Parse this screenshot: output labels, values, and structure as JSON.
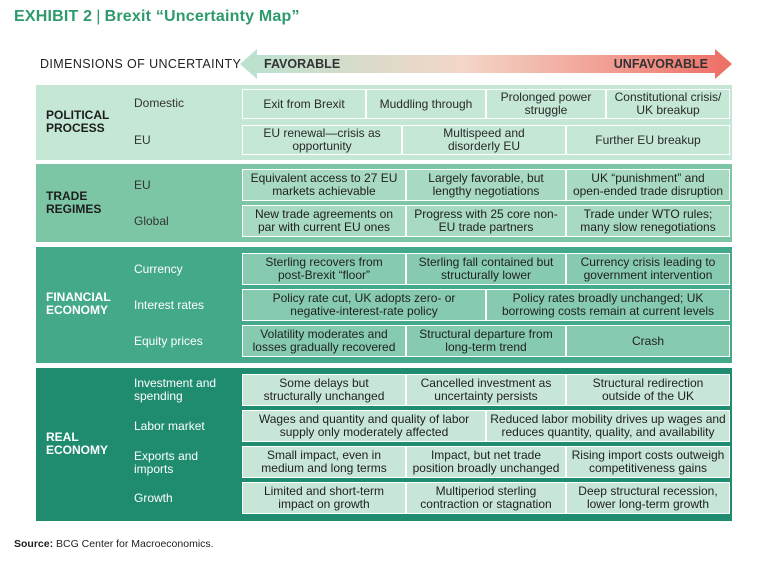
{
  "title": {
    "exhibit": "EXHIBIT 2",
    "text": "Brexit “Uncertainty Map”"
  },
  "header": {
    "dimensions": "DIMENSIONS OF UNCERTAINTY",
    "favorable": "FAVORABLE",
    "unfavorable": "UNFAVORABLE"
  },
  "colors": {
    "title": "#2e9a6b",
    "arrow_left": "#b8e2cf",
    "arrow_right": "#ee6e65",
    "political_bg": "#c4e7d6",
    "political_cell": "#c4e7d6",
    "trade_bg": "#7cc6a6",
    "trade_cell": "#a8d9c2",
    "financial_bg": "#43a98a",
    "financial_cell": "#86cbb0",
    "real_bg": "#1f8b6f",
    "real_cell": "#c7e6d7"
  },
  "sections": [
    {
      "name": "POLITICAL\nPROCESS",
      "rows": [
        {
          "label": "Domestic",
          "cells": [
            "Exit from Brexit",
            "Muddling through",
            "Prolonged power\nstruggle",
            "Constitutional crisis/\nUK breakup"
          ]
        },
        {
          "label": "EU",
          "cells": [
            "EU renewal—crisis as\nopportunity",
            "Multispeed and\ndisorderly  EU",
            "Further EU breakup"
          ]
        }
      ]
    },
    {
      "name": "TRADE\nREGIMES",
      "rows": [
        {
          "label": "EU",
          "cells": [
            "Equivalent access to 27 EU\nmarkets achievable",
            "Largely favorable, but\nlengthy negotiations",
            "UK “punishment” and\nopen-ended trade disruption"
          ]
        },
        {
          "label": "Global",
          "cells": [
            "New trade agreements on\npar with current EU ones",
            "Progress with 25 core non-\nEU trade partners",
            "Trade under WTO rules;\nmany slow renegotiations"
          ]
        }
      ]
    },
    {
      "name": "FINANCIAL\nECONOMY",
      "rows": [
        {
          "label": "Currency",
          "cells": [
            "Sterling recovers from\npost-Brexit “floor”",
            "Sterling fall contained but\nstructurally lower",
            "Currency crisis leading to\ngovernment intervention"
          ]
        },
        {
          "label": "Interest rates",
          "cells": [
            "Policy rate cut, UK adopts zero- or\nnegative-interest-rate policy",
            "Policy rates broadly unchanged; UK\nborrowing costs remain at current levels"
          ]
        },
        {
          "label": "Equity prices",
          "cells": [
            "Volatility moderates and\nlosses gradually recovered",
            "Structural departure from\nlong-term trend",
            "Crash"
          ]
        }
      ]
    },
    {
      "name": "REAL\nECONOMY",
      "rows": [
        {
          "label": "Investment and\nspending",
          "cells": [
            "Some delays but\nstructurally unchanged",
            "Cancelled investment as\nuncertainty persists",
            "Structural redirection\noutside of the UK"
          ]
        },
        {
          "label": "Labor market",
          "cells": [
            "Wages and quantity and quality of labor\nsupply only moderately affected",
            "Reduced labor mobility drives up wages and\nreduces quantity, quality, and availability"
          ]
        },
        {
          "label": "Exports and\nimports",
          "cells": [
            "Small impact, even in\nmedium and long terms",
            "Impact, but net trade\nposition broadly unchanged",
            "Rising import costs outweigh\ncompetitiveness gains"
          ]
        },
        {
          "label": "Growth",
          "cells": [
            "Limited and short-term\nimpact on growth",
            "Multiperiod sterling\ncontraction or stagnation",
            "Deep structural recession,\nlower long-term growth"
          ]
        }
      ]
    }
  ],
  "source": {
    "label": "Source:",
    "text": "BCG Center for Macroeconomics."
  }
}
